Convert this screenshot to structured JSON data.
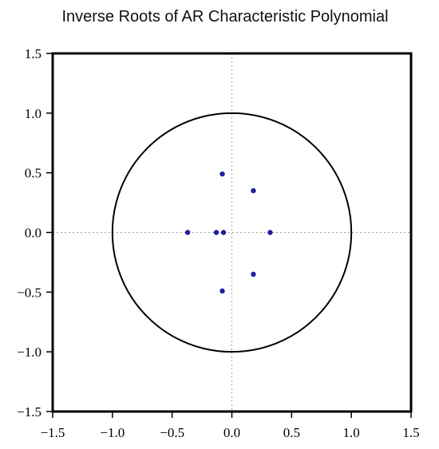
{
  "chart_data": {
    "type": "scatter",
    "title": "Inverse Roots of AR Characteristic Polynomial",
    "xlabel": "",
    "ylabel": "",
    "xlim": [
      -1.5,
      1.5
    ],
    "ylim": [
      -1.5,
      1.5
    ],
    "x_ticks": [
      "−1.5",
      "−1.0",
      "−0.5",
      "0.0",
      "0.5",
      "1.0",
      "1.5"
    ],
    "y_ticks": [
      "1.5",
      "1.0",
      "0.5",
      "0.0",
      "−0.5",
      "−1.0",
      "−1.5"
    ],
    "x_tick_values": [
      -1.5,
      -1.0,
      -0.5,
      0.0,
      0.5,
      1.0,
      1.5
    ],
    "y_tick_values": [
      1.5,
      1.0,
      0.5,
      0.0,
      -0.5,
      -1.0,
      -1.5
    ],
    "unit_circle": {
      "radius": 1.0
    },
    "reference_lines": {
      "x": 0,
      "y": 0,
      "style": "dotted"
    },
    "point_color": "#1f1fa0",
    "points": [
      {
        "x": -0.08,
        "y": 0.49
      },
      {
        "x": 0.18,
        "y": 0.35
      },
      {
        "x": -0.37,
        "y": 0.0
      },
      {
        "x": -0.13,
        "y": 0.0
      },
      {
        "x": -0.07,
        "y": 0.0
      },
      {
        "x": 0.32,
        "y": 0.0
      },
      {
        "x": 0.18,
        "y": -0.35
      },
      {
        "x": -0.08,
        "y": -0.49
      }
    ],
    "legend": "none",
    "grid": false
  }
}
